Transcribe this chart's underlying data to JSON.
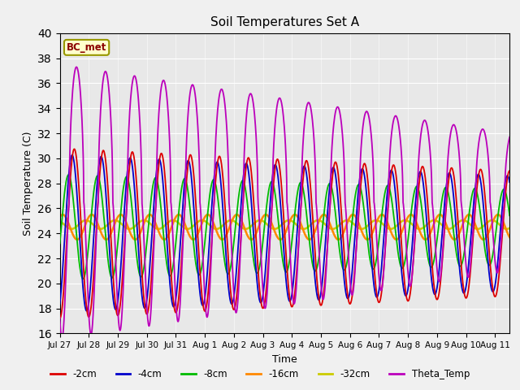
{
  "title": "Soil Temperatures Set A",
  "xlabel": "Time",
  "ylabel": "Soil Temperature (C)",
  "ylim": [
    16,
    40
  ],
  "yticks": [
    16,
    18,
    20,
    22,
    24,
    26,
    28,
    30,
    32,
    34,
    36,
    38,
    40
  ],
  "annotation": "BC_met",
  "series_colors": {
    "-2cm": "#dd0000",
    "-4cm": "#0000cc",
    "-8cm": "#00bb00",
    "-16cm": "#ff8800",
    "-32cm": "#cccc00",
    "Theta_Temp": "#bb00bb"
  },
  "line_widths": {
    "-2cm": 1.3,
    "-4cm": 1.3,
    "-8cm": 1.3,
    "-16cm": 1.8,
    "-32cm": 1.8,
    "Theta_Temp": 1.3
  },
  "bg_color": "#e8e8e8",
  "fig_bg_color": "#f0f0f0",
  "num_points": 1500,
  "end_day": 15.5
}
